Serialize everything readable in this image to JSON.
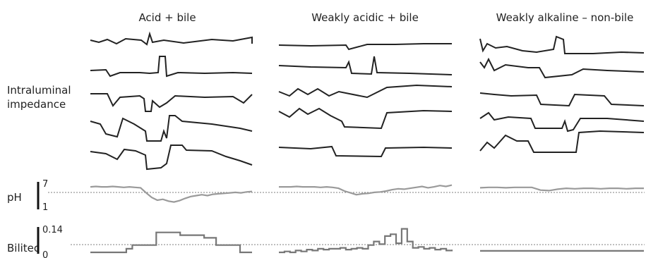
{
  "chart_data": {
    "type": "line",
    "panels": [
      {
        "title": "Acid + bile",
        "impedance_level": 5,
        "ph": "acid",
        "bilitec": "stepped"
      },
      {
        "title": "Weakly acidic + bile",
        "impedance_level": 4,
        "ph": "weak-acid",
        "bilitec": "spiky"
      },
      {
        "title": "Weakly alkaline – non-bile",
        "impedance_level": 5,
        "ph": "flat",
        "bilitec": "flat"
      }
    ],
    "row_labels": {
      "impedance": [
        "Intraluminal",
        "impedance"
      ],
      "ph": "pH",
      "bilitec": "Bilitec"
    },
    "ph_scale": {
      "max": "7",
      "min": "1",
      "threshold": 4
    },
    "bilitec_scale": {
      "max": "0.14",
      "min": "0",
      "threshold": 0.04
    },
    "ph_series": [
      [
        5.9,
        6.0,
        5.9,
        5.9,
        6.0,
        5.9,
        5.8,
        5.9,
        5.8,
        5.7,
        4.6,
        3.6,
        3.0,
        3.2,
        2.8,
        2.6,
        2.9,
        3.4,
        3.8,
        4.0,
        4.2,
        4.0,
        4.3,
        4.4,
        4.5,
        4.6,
        4.7,
        4.6,
        4.8,
        4.9
      ],
      [
        5.9,
        5.9,
        5.9,
        6.0,
        5.9,
        5.9,
        5.9,
        5.8,
        5.9,
        5.8,
        5.6,
        5.0,
        4.6,
        4.2,
        4.4,
        4.5,
        4.7,
        4.8,
        5.0,
        5.3,
        5.5,
        5.4,
        5.6,
        5.8,
        6.0,
        5.7,
        5.9,
        6.2,
        6.0,
        6.3
      ],
      [
        5.7,
        5.8,
        5.8,
        5.7,
        5.8,
        5.8,
        5.8,
        5.2,
        5.1,
        5.4,
        5.6,
        5.5,
        5.6,
        5.6,
        5.5,
        5.6,
        5.6,
        5.5,
        5.6,
        5.6
      ]
    ],
    "bilitec_series": [
      [
        0.0,
        0.0,
        0.0,
        0.0,
        0.0,
        0.0,
        0.02,
        0.04,
        0.04,
        0.04,
        0.04,
        0.11,
        0.11,
        0.11,
        0.11,
        0.095,
        0.095,
        0.095,
        0.095,
        0.08,
        0.08,
        0.04,
        0.04,
        0.04,
        0.04,
        0.0,
        0.0,
        0.0
      ],
      [
        0.0,
        0.005,
        0.0,
        0.01,
        0.005,
        0.015,
        0.01,
        0.02,
        0.015,
        0.02,
        0.02,
        0.025,
        0.015,
        0.02,
        0.025,
        0.02,
        0.04,
        0.06,
        0.045,
        0.09,
        0.1,
        0.05,
        0.13,
        0.06,
        0.025,
        0.03,
        0.02,
        0.025,
        0.015,
        0.02,
        0.01,
        0.015
      ],
      [
        0.008,
        0.008,
        0.008,
        0.008,
        0.008,
        0.008,
        0.008,
        0.008,
        0.008,
        0.008
      ]
    ]
  },
  "colors": {
    "impedance": "#222222",
    "ph": "#9a9a9a",
    "bilitec": "#777777",
    "threshold": "#555555"
  }
}
